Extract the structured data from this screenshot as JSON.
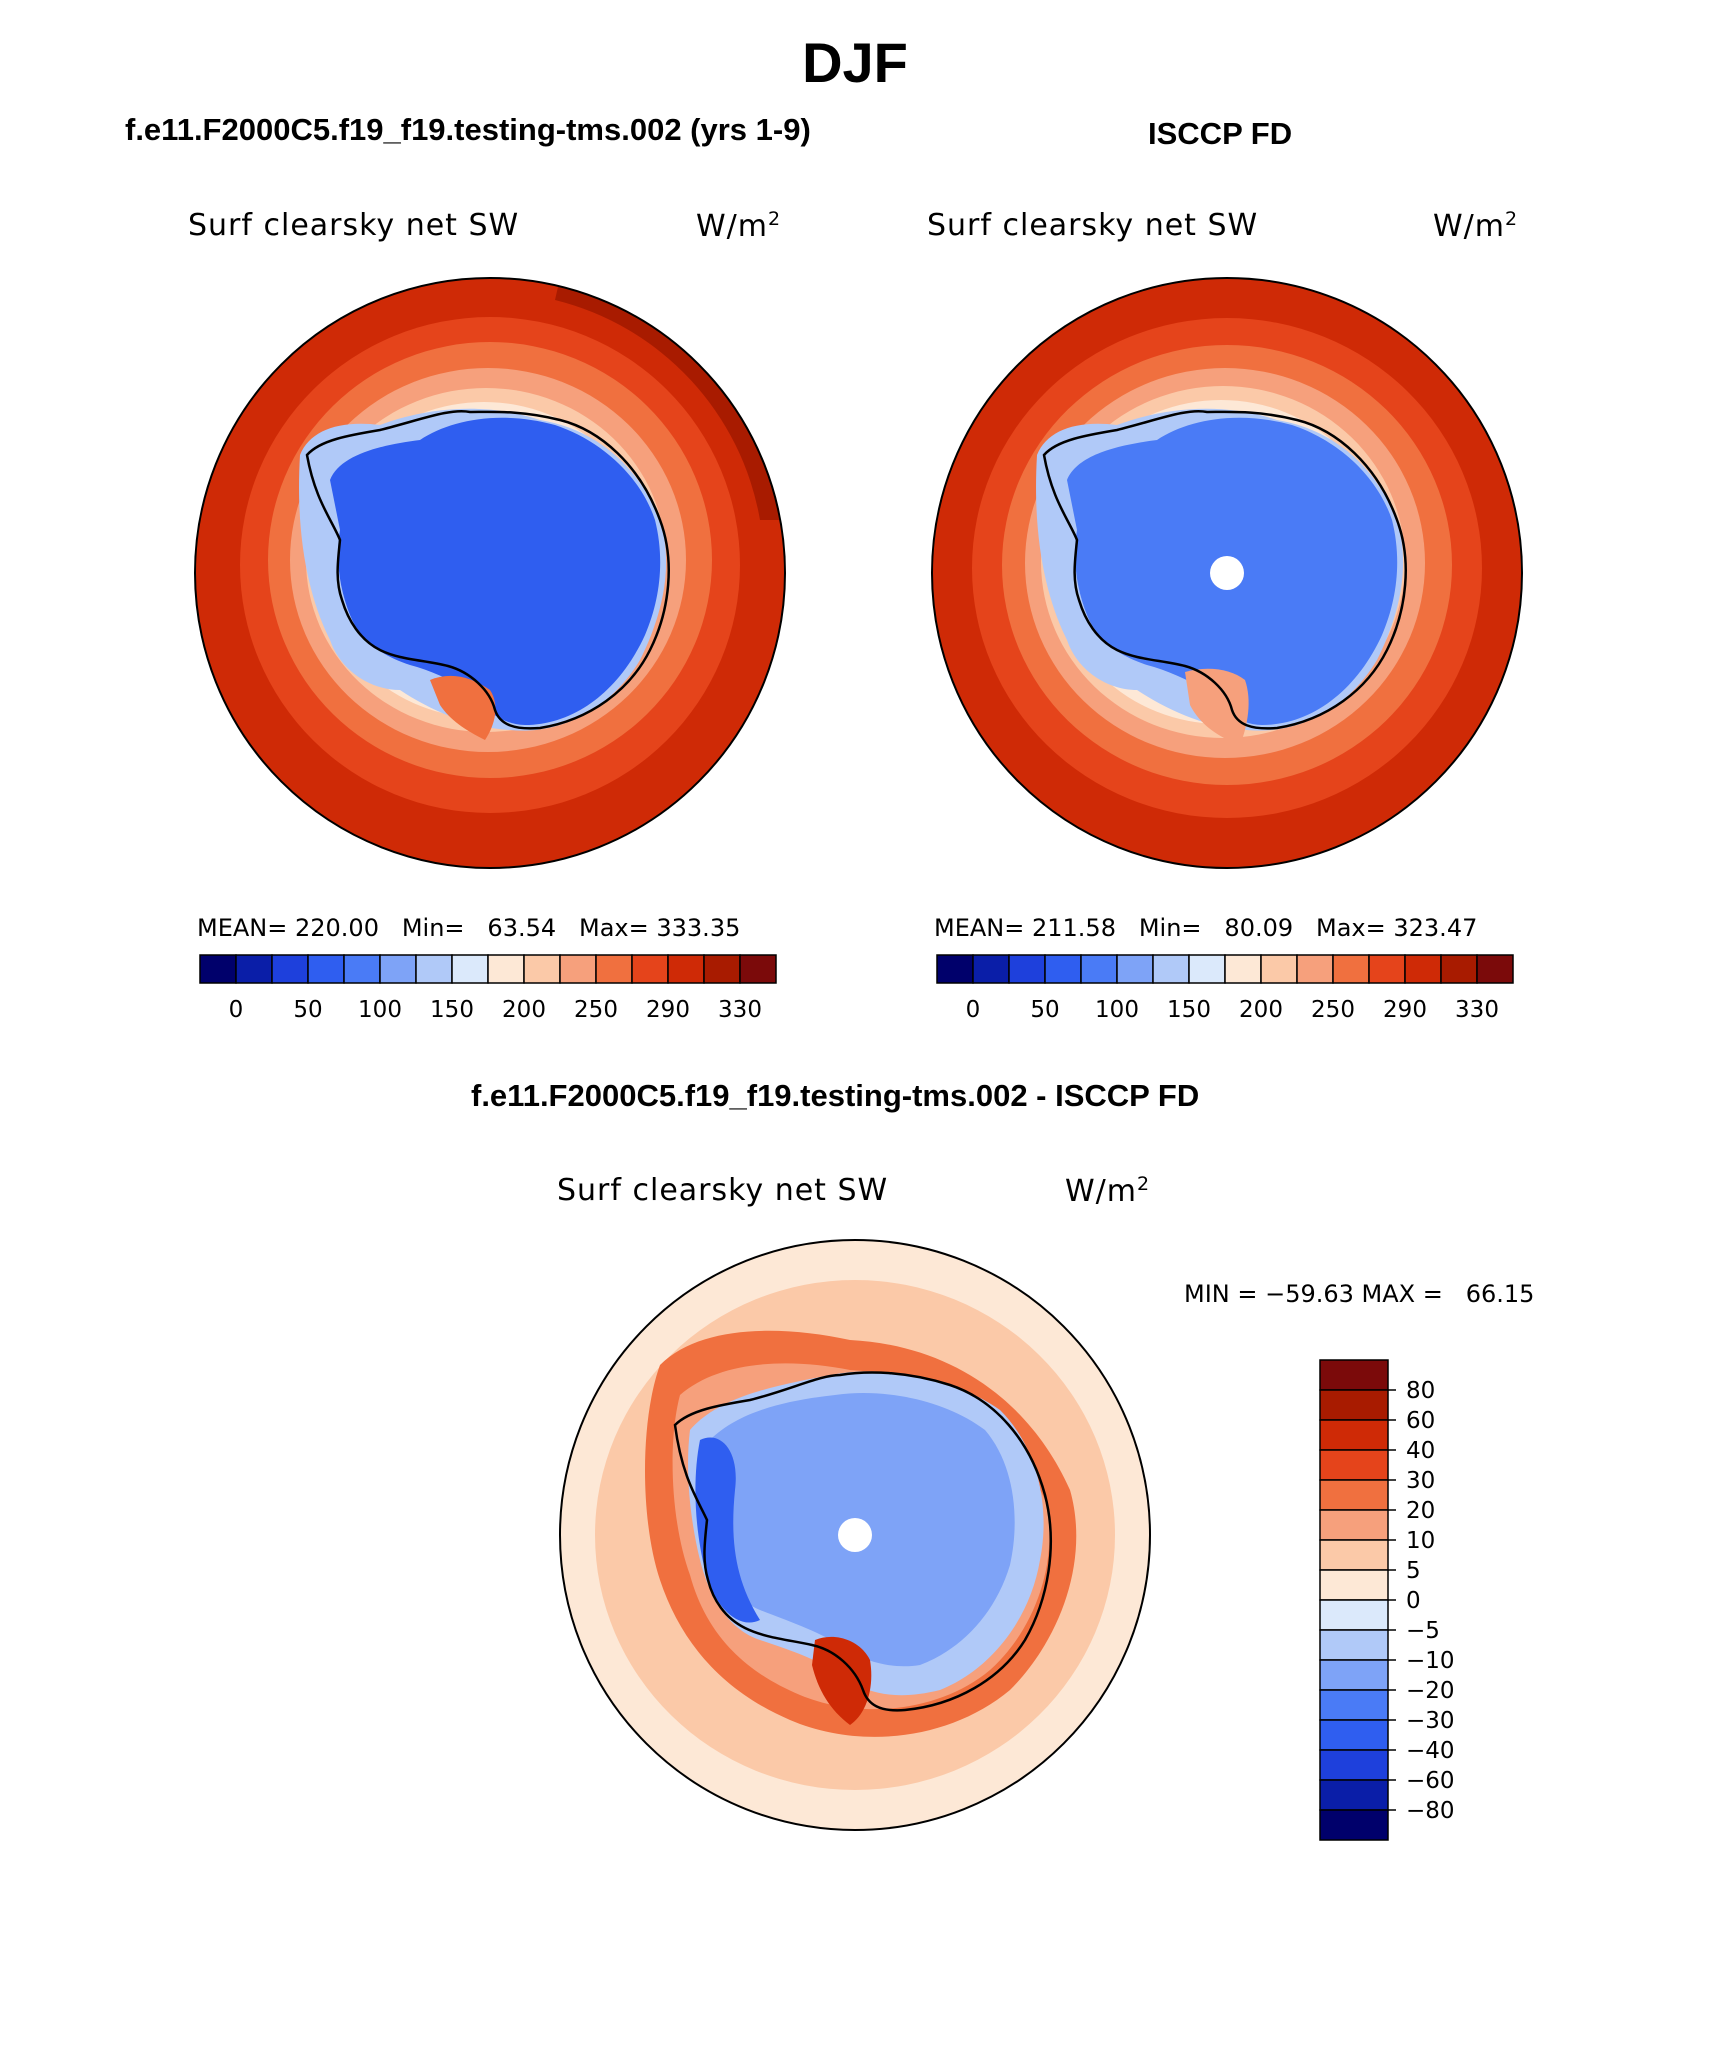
{
  "header": {
    "season": "DJF",
    "left_title": "f.e11.F2000C5.f19_f19.testing-tms.002 (yrs 1-9)",
    "right_title": "ISCCP FD",
    "diff_title": "f.e11.F2000C5.f19_f19.testing-tms.002 - ISCCP FD"
  },
  "panels": {
    "model": {
      "variable": "Surf clearsky net SW",
      "units_base": "W/m",
      "units_sup": "2",
      "stats": "MEAN= 220.00   Min=   63.54   Max= 333.35"
    },
    "obs": {
      "variable": "Surf clearsky net SW",
      "units_base": "W/m",
      "units_sup": "2",
      "stats": "MEAN= 211.58   Min=   80.09   Max= 323.47"
    },
    "diff": {
      "variable": "Surf clearsky net SW",
      "units_base": "W/m",
      "units_sup": "2",
      "stats": "MIN = −59.63 MAX =   66.15"
    }
  },
  "colors": {
    "abs_scale": [
      "#00006b",
      "#0a1ea8",
      "#1e40dc",
      "#2f5ef0",
      "#4a7bf6",
      "#7ea3f7",
      "#b0c9f8",
      "#dbe9fb",
      "#fde8d6",
      "#fbc9a8",
      "#f6a07c",
      "#f0703f",
      "#e5441b",
      "#cf2a06",
      "#a81b00",
      "#7b0a0a"
    ],
    "diff_scale": [
      "#00006b",
      "#0a1ea8",
      "#1e40dc",
      "#2f5ef0",
      "#4a7bf6",
      "#7ea3f7",
      "#b0c9f8",
      "#dbe9fb",
      "#fde8d6",
      "#fbc9a8",
      "#f6a07c",
      "#f0703f",
      "#e5441b",
      "#cf2a06",
      "#a81b00",
      "#7b0a0a"
    ],
    "land_blue": "#3f7bf2",
    "land_blue_dark": "#2556e8"
  },
  "chart_data": [
    {
      "type": "heatmap",
      "title": "f.e11.F2000C5.f19_f19.testing-tms.002 (yrs 1-9)",
      "variable": "Surf clearsky net SW",
      "units": "W/m2",
      "projection": "south polar stereographic",
      "mean": 220.0,
      "min": 63.54,
      "max": 333.35,
      "colorbar_levels": [
        0,
        50,
        100,
        150,
        200,
        250,
        290,
        330
      ],
      "colorbar_orientation": "horizontal"
    },
    {
      "type": "heatmap",
      "title": "ISCCP FD",
      "variable": "Surf clearsky net SW",
      "units": "W/m2",
      "projection": "south polar stereographic",
      "mean": 211.58,
      "min": 80.09,
      "max": 323.47,
      "colorbar_levels": [
        0,
        50,
        100,
        150,
        200,
        250,
        290,
        330
      ],
      "colorbar_orientation": "horizontal"
    },
    {
      "type": "heatmap",
      "title": "f.e11.F2000C5.f19_f19.testing-tms.002 - ISCCP FD",
      "variable": "Surf clearsky net SW",
      "units": "W/m2",
      "projection": "south polar stereographic",
      "min": -59.63,
      "max": 66.15,
      "colorbar_levels": [
        "80",
        "60",
        "40",
        "30",
        "20",
        "10",
        "5",
        "0",
        "−5",
        "−10",
        "−20",
        "−30",
        "−40",
        "−60",
        "−80"
      ],
      "colorbar_orientation": "vertical"
    }
  ]
}
